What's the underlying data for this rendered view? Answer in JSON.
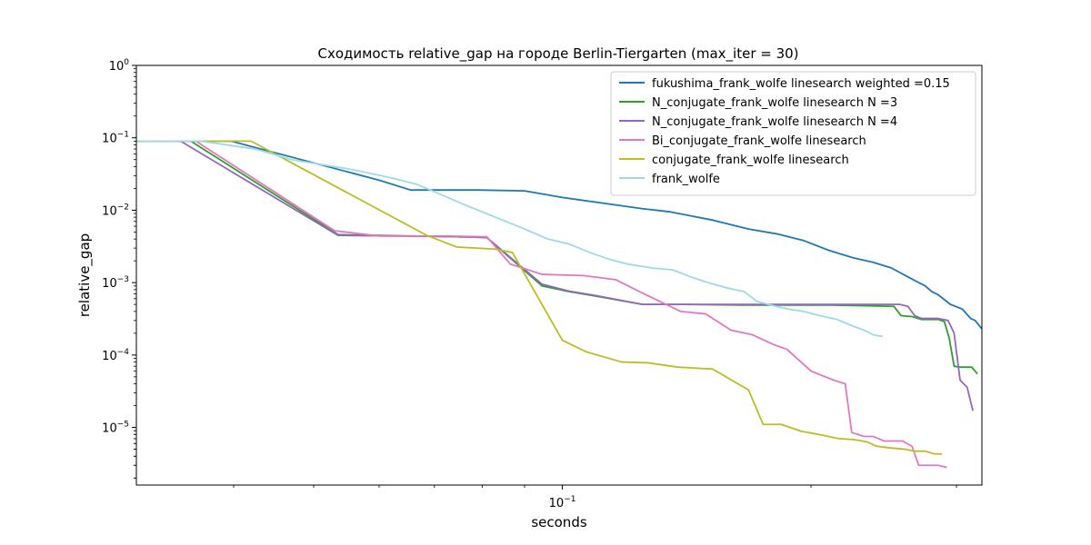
{
  "chart_data": {
    "type": "line",
    "title": "Сходимость relative_gap на городе Berlin-Tiergarten  (max_iter = 30)",
    "xlabel": "seconds",
    "ylabel": "relative_gap",
    "xscale": "log",
    "yscale": "log",
    "xlim": [
      0.0305,
      0.322
    ],
    "ylim": [
      1.6e-06,
      1
    ],
    "x_ticks": [
      {
        "value": 0.1,
        "base": "10",
        "exp": "−1"
      }
    ],
    "y_ticks": [
      {
        "value": 1,
        "base": "10",
        "exp": "0"
      },
      {
        "value": 0.1,
        "base": "10",
        "exp": "−1"
      },
      {
        "value": 0.01,
        "base": "10",
        "exp": "−2"
      },
      {
        "value": 0.001,
        "base": "10",
        "exp": "−3"
      },
      {
        "value": 0.0001,
        "base": "10",
        "exp": "−4"
      },
      {
        "value": 1e-05,
        "base": "10",
        "exp": "−5"
      }
    ],
    "x_minor_ticks": [
      0.04,
      0.05,
      0.06,
      0.07,
      0.08,
      0.09,
      0.2,
      0.3
    ],
    "grid": false,
    "legend_position": "top-right",
    "series": [
      {
        "name": "fukushima_frank_wolfe linesearch weighted =0.15",
        "color": "#1f77b4",
        "points": [
          [
            0.0305,
            0.09
          ],
          [
            0.0397,
            0.09
          ],
          [
            0.06,
            0.026
          ],
          [
            0.0655,
            0.019
          ],
          [
            0.079,
            0.019
          ],
          [
            0.09,
            0.0185
          ],
          [
            0.1,
            0.015
          ],
          [
            0.115,
            0.012
          ],
          [
            0.125,
            0.0105
          ],
          [
            0.135,
            0.0095
          ],
          [
            0.152,
            0.0073
          ],
          [
            0.168,
            0.0055
          ],
          [
            0.182,
            0.0047
          ],
          [
            0.196,
            0.0038
          ],
          [
            0.21,
            0.0028
          ],
          [
            0.225,
            0.0022
          ],
          [
            0.238,
            0.0019
          ],
          [
            0.25,
            0.0016
          ],
          [
            0.262,
            0.0012
          ],
          [
            0.27,
            0.001
          ],
          [
            0.275,
            0.0009
          ],
          [
            0.28,
            0.00075
          ],
          [
            0.285,
            0.00068
          ],
          [
            0.295,
            0.0005
          ],
          [
            0.305,
            0.00043
          ],
          [
            0.312,
            0.00032
          ],
          [
            0.316,
            0.0003
          ],
          [
            0.322,
            0.00023
          ]
        ]
      },
      {
        "name": "N_conjugate_frank_wolfe linesearch N =3",
        "color": "#2ca02c",
        "points": [
          [
            0.0305,
            0.09
          ],
          [
            0.0355,
            0.09
          ],
          [
            0.0535,
            0.0046
          ],
          [
            0.0745,
            0.0043
          ],
          [
            0.081,
            0.0042
          ],
          [
            0.0945,
            0.0009
          ],
          [
            0.102,
            0.00075
          ],
          [
            0.11,
            0.00065
          ],
          [
            0.125,
            0.0005
          ],
          [
            0.14,
            0.0005
          ],
          [
            0.165,
            0.00049
          ],
          [
            0.212,
            0.00049
          ],
          [
            0.252,
            0.00047
          ],
          [
            0.257,
            0.00035
          ],
          [
            0.265,
            0.00034
          ],
          [
            0.272,
            0.00031
          ],
          [
            0.285,
            0.00031
          ],
          [
            0.29,
            0.00029
          ],
          [
            0.294,
            0.00017
          ],
          [
            0.298,
            7e-05
          ],
          [
            0.303,
            6.8e-05
          ],
          [
            0.313,
            6.8e-05
          ],
          [
            0.318,
            5.5e-05
          ]
        ]
      },
      {
        "name": "N_conjugate_frank_wolfe linesearch N =4",
        "color": "#9467bd",
        "points": [
          [
            0.0305,
            0.09
          ],
          [
            0.0345,
            0.09
          ],
          [
            0.0535,
            0.0045
          ],
          [
            0.0745,
            0.0043
          ],
          [
            0.081,
            0.0042
          ],
          [
            0.0945,
            0.00095
          ],
          [
            0.102,
            0.00076
          ],
          [
            0.11,
            0.00066
          ],
          [
            0.125,
            0.0005
          ],
          [
            0.14,
            0.0005
          ],
          [
            0.165,
            0.0005
          ],
          [
            0.212,
            0.0005
          ],
          [
            0.256,
            0.0005
          ],
          [
            0.262,
            0.00047
          ],
          [
            0.267,
            0.00035
          ],
          [
            0.272,
            0.00032
          ],
          [
            0.285,
            0.00032
          ],
          [
            0.293,
            0.0003
          ],
          [
            0.298,
            0.0002
          ],
          [
            0.303,
            4.5e-05
          ],
          [
            0.309,
            3.6e-05
          ],
          [
            0.314,
            1.7e-05
          ]
        ]
      },
      {
        "name": "Bi_conjugate_frank_wolfe linesearch",
        "color": "#e377c2",
        "points": [
          [
            0.0305,
            0.09
          ],
          [
            0.036,
            0.09
          ],
          [
            0.053,
            0.0052
          ],
          [
            0.06,
            0.0044
          ],
          [
            0.073,
            0.0044
          ],
          [
            0.081,
            0.0043
          ],
          [
            0.0865,
            0.0018
          ],
          [
            0.0945,
            0.0013
          ],
          [
            0.106,
            0.00125
          ],
          [
            0.116,
            0.0011
          ],
          [
            0.124,
            0.00075
          ],
          [
            0.139,
            0.0004
          ],
          [
            0.149,
            0.00037
          ],
          [
            0.16,
            0.00022
          ],
          [
            0.17,
            0.00019
          ],
          [
            0.18,
            0.00014
          ],
          [
            0.187,
            0.00012
          ],
          [
            0.2,
            6e-05
          ],
          [
            0.213,
            4.5e-05
          ],
          [
            0.22,
            4e-05
          ],
          [
            0.224,
            8.5e-06
          ],
          [
            0.232,
            7.5e-06
          ],
          [
            0.238,
            7.5e-06
          ],
          [
            0.245,
            6.5e-06
          ],
          [
            0.258,
            6.5e-06
          ],
          [
            0.265,
            5.5e-06
          ],
          [
            0.27,
            3e-06
          ],
          [
            0.285,
            3e-06
          ],
          [
            0.292,
            2.8e-06
          ]
        ]
      },
      {
        "name": "conjugate_frank_wolfe linesearch",
        "color": "#bcbd22",
        "points": [
          [
            0.0305,
            0.09
          ],
          [
            0.0365,
            0.09
          ],
          [
            0.0397,
            0.09
          ],
          [
            0.042,
            0.09
          ],
          [
            0.0685,
            0.0045
          ],
          [
            0.0745,
            0.0031
          ],
          [
            0.083,
            0.0029
          ],
          [
            0.087,
            0.0026
          ],
          [
            0.1,
            0.00016
          ],
          [
            0.107,
            0.00011
          ],
          [
            0.118,
            8e-05
          ],
          [
            0.127,
            7.8e-05
          ],
          [
            0.138,
            6.8e-05
          ],
          [
            0.152,
            6.4e-05
          ],
          [
            0.168,
            3.3e-05
          ],
          [
            0.175,
            1.1e-05
          ],
          [
            0.184,
            1.1e-05
          ],
          [
            0.195,
            8.8e-06
          ],
          [
            0.202,
            8.2e-06
          ],
          [
            0.21,
            7.5e-06
          ],
          [
            0.216,
            7e-06
          ],
          [
            0.225,
            6.8e-06
          ],
          [
            0.234,
            6.3e-06
          ],
          [
            0.24,
            5.5e-06
          ],
          [
            0.25,
            5.2e-06
          ],
          [
            0.26,
            5e-06
          ],
          [
            0.267,
            4.7e-06
          ],
          [
            0.275,
            4.7e-06
          ],
          [
            0.282,
            4.3e-06
          ],
          [
            0.288,
            4.3e-06
          ]
        ]
      },
      {
        "name": "frank_wolfe",
        "color": "#9edae5",
        "points": [
          [
            0.0305,
            0.09
          ],
          [
            0.0365,
            0.09
          ],
          [
            0.0425,
            0.07
          ],
          [
            0.047,
            0.05
          ],
          [
            0.056,
            0.036
          ],
          [
            0.062,
            0.028
          ],
          [
            0.0665,
            0.023
          ],
          [
            0.07,
            0.018
          ],
          [
            0.076,
            0.012
          ],
          [
            0.083,
            0.008
          ],
          [
            0.09,
            0.0055
          ],
          [
            0.096,
            0.004
          ],
          [
            0.102,
            0.0034
          ],
          [
            0.108,
            0.0026
          ],
          [
            0.114,
            0.0021
          ],
          [
            0.12,
            0.0018
          ],
          [
            0.128,
            0.0016
          ],
          [
            0.136,
            0.0015
          ],
          [
            0.143,
            0.0012
          ],
          [
            0.15,
            0.001
          ],
          [
            0.158,
            0.00085
          ],
          [
            0.166,
            0.00075
          ],
          [
            0.172,
            0.00055
          ],
          [
            0.18,
            0.00048
          ],
          [
            0.188,
            0.00043
          ],
          [
            0.196,
            0.0004
          ],
          [
            0.205,
            0.00035
          ],
          [
            0.215,
            0.00031
          ],
          [
            0.225,
            0.00025
          ],
          [
            0.232,
            0.00022
          ],
          [
            0.238,
            0.00019
          ],
          [
            0.244,
            0.00018
          ]
        ]
      }
    ]
  }
}
